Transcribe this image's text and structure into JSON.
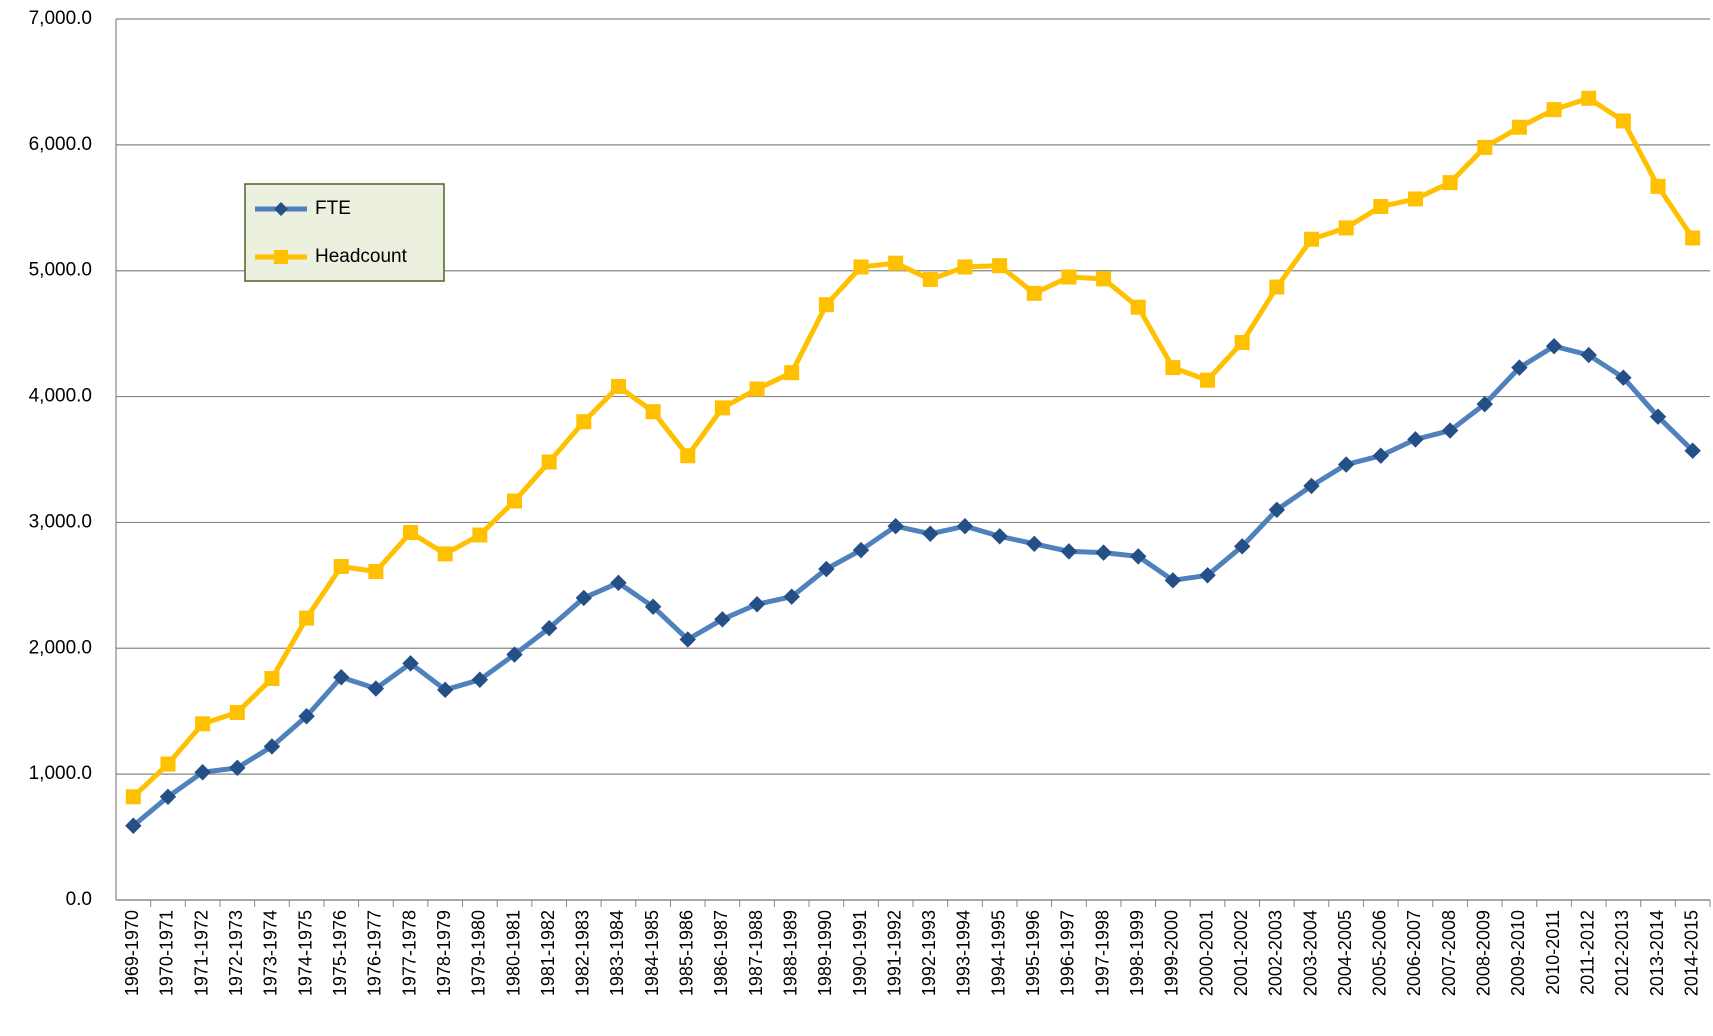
{
  "chart_data": {
    "type": "line",
    "categories": [
      "1969-1970",
      "1970-1971",
      "1971-1972",
      "1972-1973",
      "1973-1974",
      "1974-1975",
      "1975-1976",
      "1976-1977",
      "1977-1978",
      "1978-1979",
      "1979-1980",
      "1980-1981",
      "1981-1982",
      "1982-1983",
      "1983-1984",
      "1984-1985",
      "1985-1986",
      "1986-1987",
      "1987-1988",
      "1988-1989",
      "1989-1990",
      "1990-1991",
      "1991-1992",
      "1992-1993",
      "1993-1994",
      "1994-1995",
      "1995-1996",
      "1996-1997",
      "1997-1998",
      "1998-1999",
      "1999-2000",
      "2000-2001",
      "2001-2002",
      "2002-2003",
      "2003-2004",
      "2004-2005",
      "2005-2006",
      "2006-2007",
      "2007-2008",
      "2008-2009",
      "2009-2010",
      "2010-2011",
      "2011-2012",
      "2012-2013",
      "2013-2014",
      "2014-2015"
    ],
    "series": [
      {
        "name": "FTE",
        "color": "#4f81bd",
        "marker_color": "#254f87",
        "marker": "diamond",
        "values": [
          590,
          820,
          1015,
          1050,
          1220,
          1460,
          1770,
          1680,
          1880,
          1670,
          1750,
          1950,
          2160,
          2400,
          2520,
          2330,
          2070,
          2230,
          2350,
          2410,
          2630,
          2780,
          2970,
          2910,
          2970,
          2890,
          2830,
          2770,
          2760,
          2730,
          2540,
          2580,
          2810,
          3100,
          3290,
          3460,
          3530,
          3660,
          3730,
          3940,
          4230,
          4400,
          4330,
          4150,
          3840,
          3570
        ]
      },
      {
        "name": "Headcount",
        "color": "#ffc000",
        "marker_color": "#ffc000",
        "marker": "square",
        "values": [
          820,
          1080,
          1400,
          1490,
          1760,
          2240,
          2650,
          2610,
          2920,
          2750,
          2900,
          3170,
          3480,
          3800,
          4080,
          3880,
          3530,
          3910,
          4060,
          4190,
          4730,
          5030,
          5060,
          4930,
          5030,
          5040,
          4820,
          4950,
          4935,
          4710,
          4230,
          4130,
          4430,
          4870,
          5250,
          5340,
          5510,
          5570,
          5700,
          5980,
          6140,
          6280,
          6370,
          6190,
          5670,
          5260
        ]
      }
    ],
    "ylim": [
      0,
      7000
    ],
    "yticks": [
      {
        "value": 0,
        "label": "0.0"
      },
      {
        "value": 1000,
        "label": "1,000.0"
      },
      {
        "value": 2000,
        "label": "2,000.0"
      },
      {
        "value": 3000,
        "label": "3,000.0"
      },
      {
        "value": 4000,
        "label": "4,000.0"
      },
      {
        "value": 5000,
        "label": "5,000.0"
      },
      {
        "value": 6000,
        "label": "6,000.0"
      },
      {
        "value": 7000,
        "label": "7,000.0"
      }
    ],
    "grid": true,
    "legend": "upper left"
  }
}
